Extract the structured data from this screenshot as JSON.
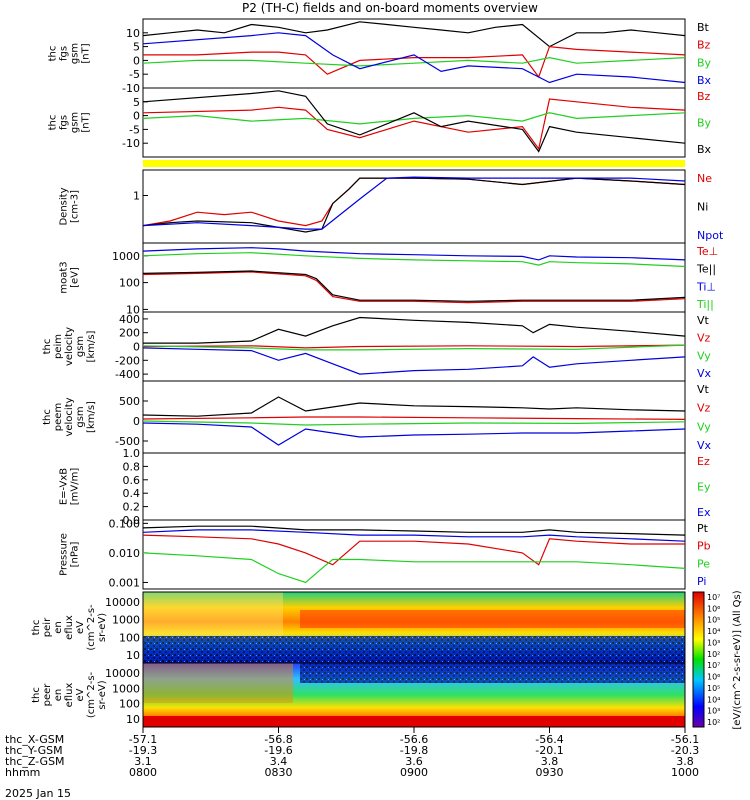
{
  "title": "P2 (TH-C) fields and on-board moments overview",
  "colors": {
    "black": "#000000",
    "red": "#e00000",
    "green": "#20d020",
    "blue": "#0000e0",
    "yellow": "#ffff00"
  },
  "chart_data": [
    {
      "type": "line",
      "id": "fgs_gsm",
      "ylabel": [
        "thc",
        "fgs",
        "gsm",
        "[nT]"
      ],
      "ylim": [
        -10,
        15
      ],
      "yticks": [
        "10",
        "5",
        "0",
        "-5",
        "-10"
      ],
      "series": [
        {
          "name": "Bt",
          "color": "#000000",
          "x": [
            0,
            0.05,
            0.1,
            0.15,
            0.2,
            0.25,
            0.3,
            0.34,
            0.4,
            0.45,
            0.5,
            0.55,
            0.6,
            0.65,
            0.7,
            0.75,
            0.8,
            0.85,
            0.9,
            0.95,
            1.0
          ],
          "values": [
            9,
            10,
            11,
            10,
            13,
            12,
            10,
            11,
            14,
            13,
            12,
            11,
            10,
            12,
            13,
            5,
            10,
            10,
            11,
            10,
            9
          ]
        },
        {
          "name": "Bz",
          "color": "#e00000",
          "x": [
            0,
            0.1,
            0.2,
            0.25,
            0.3,
            0.34,
            0.4,
            0.5,
            0.6,
            0.7,
            0.73,
            0.75,
            0.8,
            0.9,
            1.0
          ],
          "values": [
            2,
            2,
            3,
            3,
            2,
            -5,
            0,
            1,
            1,
            2,
            -6,
            5,
            4,
            3,
            2
          ]
        },
        {
          "name": "By",
          "color": "#20d020",
          "x": [
            0,
            0.1,
            0.2,
            0.3,
            0.4,
            0.5,
            0.6,
            0.7,
            0.75,
            0.8,
            0.9,
            1.0
          ],
          "values": [
            -1,
            0,
            0,
            -1,
            -2,
            -1,
            0,
            -1,
            1,
            -1,
            0,
            1
          ]
        },
        {
          "name": "Bx",
          "color": "#0000e0",
          "x": [
            0,
            0.2,
            0.25,
            0.3,
            0.35,
            0.4,
            0.5,
            0.55,
            0.6,
            0.7,
            0.75,
            0.8,
            0.9,
            1.0
          ],
          "values": [
            6,
            9,
            10,
            9,
            2,
            -3,
            2,
            -4,
            -2,
            -3,
            -8,
            -5,
            -6,
            -8
          ]
        }
      ]
    },
    {
      "type": "line",
      "id": "fgs_gsm_2",
      "ylabel": [
        "thc",
        "fgs",
        "gsm",
        "[nT]"
      ],
      "ylim": [
        -15,
        10
      ],
      "yticks": [
        "5",
        "0",
        "-5",
        "-10"
      ],
      "series": [
        {
          "name": "Bz",
          "color": "#e00000",
          "x": [
            0,
            0.2,
            0.25,
            0.3,
            0.34,
            0.4,
            0.5,
            0.6,
            0.7,
            0.73,
            0.75,
            0.8,
            0.9,
            1.0
          ],
          "values": [
            1,
            2,
            3,
            2,
            -5,
            -8,
            -2,
            -6,
            -4,
            -12,
            6,
            5,
            3,
            2
          ]
        },
        {
          "name": "By",
          "color": "#20d020",
          "x": [
            0,
            0.1,
            0.2,
            0.3,
            0.4,
            0.5,
            0.6,
            0.7,
            0.75,
            0.8,
            0.9,
            1.0
          ],
          "values": [
            -1,
            0,
            -2,
            -1,
            -3,
            -1,
            0,
            -2,
            1,
            -1,
            0,
            1
          ]
        },
        {
          "name": "Bx",
          "color": "#000000",
          "x": [
            0,
            0.2,
            0.25,
            0.3,
            0.34,
            0.4,
            0.5,
            0.55,
            0.6,
            0.7,
            0.73,
            0.75,
            0.8,
            0.9,
            1.0
          ],
          "values": [
            5,
            8,
            9,
            7,
            -3,
            -7,
            1,
            -4,
            -2,
            -5,
            -13,
            -4,
            -6,
            -8,
            -10
          ]
        }
      ]
    },
    {
      "type": "line",
      "id": "density",
      "log": true,
      "ylabel": [
        "Density",
        "[cm-3]"
      ],
      "ylim": [
        0.05,
        5
      ],
      "yticks": [
        "1"
      ],
      "series": [
        {
          "name": "Ne",
          "color": "#e00000",
          "x": [
            0,
            0.05,
            0.1,
            0.15,
            0.2,
            0.25,
            0.3,
            0.33,
            0.35,
            0.38,
            0.4,
            0.5,
            0.6,
            0.7,
            0.8,
            0.9,
            1.0
          ],
          "values": [
            0.15,
            0.2,
            0.35,
            0.3,
            0.35,
            0.2,
            0.15,
            0.2,
            0.6,
            1.5,
            3,
            3,
            2.8,
            2,
            3,
            2.5,
            2
          ]
        },
        {
          "name": "Ni",
          "color": "#000000",
          "x": [
            0,
            0.05,
            0.1,
            0.2,
            0.3,
            0.33,
            0.35,
            0.38,
            0.4,
            0.5,
            0.6,
            0.7,
            0.8,
            0.9,
            1.0
          ],
          "values": [
            0.15,
            0.18,
            0.2,
            0.18,
            0.1,
            0.12,
            0.6,
            1.5,
            3,
            3,
            2.8,
            2,
            3,
            2.5,
            2
          ]
        },
        {
          "name": "Npot",
          "color": "#0000e0",
          "x": [
            0,
            0.1,
            0.2,
            0.3,
            0.33,
            0.4,
            0.45,
            0.5,
            0.6,
            0.7,
            0.8,
            0.9,
            1.0
          ],
          "values": [
            0.15,
            0.18,
            0.15,
            0.12,
            0.12,
            0.8,
            3,
            3.2,
            3,
            3,
            3,
            3,
            2.5
          ]
        }
      ]
    },
    {
      "type": "line",
      "id": "temperature",
      "log": true,
      "ylabel": [
        "moat3",
        "[eV]"
      ],
      "ylim": [
        8,
        3000
      ],
      "yticks": [
        "1000",
        "100",
        "10"
      ],
      "series": [
        {
          "name": "Te⊥",
          "color": "#e00000",
          "x": [
            0,
            0.1,
            0.2,
            0.3,
            0.32,
            0.35,
            0.4,
            0.5,
            0.6,
            0.7,
            0.8,
            0.9,
            1.0
          ],
          "values": [
            200,
            220,
            250,
            180,
            120,
            30,
            20,
            20,
            18,
            20,
            20,
            20,
            25
          ]
        },
        {
          "name": "Te||",
          "color": "#000000",
          "x": [
            0,
            0.1,
            0.2,
            0.3,
            0.32,
            0.35,
            0.4,
            0.5,
            0.6,
            0.7,
            0.8,
            0.9,
            1.0
          ],
          "values": [
            220,
            240,
            270,
            200,
            140,
            35,
            22,
            22,
            20,
            22,
            22,
            22,
            28
          ]
        },
        {
          "name": "Ti⊥",
          "color": "#0000e0",
          "x": [
            0,
            0.1,
            0.2,
            0.25,
            0.3,
            0.4,
            0.5,
            0.6,
            0.7,
            0.73,
            0.75,
            0.8,
            0.9,
            1.0
          ],
          "values": [
            1500,
            1800,
            2000,
            1800,
            1500,
            1200,
            1100,
            1000,
            950,
            700,
            1000,
            900,
            850,
            700
          ]
        },
        {
          "name": "Ti||",
          "color": "#20d020",
          "x": [
            0,
            0.1,
            0.2,
            0.3,
            0.4,
            0.5,
            0.6,
            0.7,
            0.73,
            0.75,
            0.8,
            0.9,
            1.0
          ],
          "values": [
            1000,
            1200,
            1300,
            1000,
            800,
            700,
            650,
            600,
            450,
            600,
            550,
            500,
            400
          ]
        }
      ]
    },
    {
      "type": "line",
      "id": "peim_velocity",
      "ylabel": [
        "thc",
        "peim",
        "velocity",
        "gsm",
        "[km/s]"
      ],
      "ylim": [
        -500,
        500
      ],
      "yticks": [
        "400",
        "200",
        "0",
        "-200",
        "-400"
      ],
      "series": [
        {
          "name": "Vt",
          "color": "#000000",
          "x": [
            0,
            0.1,
            0.2,
            0.25,
            0.3,
            0.35,
            0.4,
            0.5,
            0.6,
            0.7,
            0.72,
            0.75,
            0.8,
            0.9,
            1.0
          ],
          "values": [
            50,
            50,
            80,
            250,
            150,
            300,
            420,
            380,
            350,
            300,
            200,
            320,
            280,
            220,
            150
          ]
        },
        {
          "name": "Vz",
          "color": "#e00000",
          "x": [
            0,
            0.2,
            0.3,
            0.4,
            0.6,
            0.8,
            1.0
          ],
          "values": [
            0,
            10,
            -20,
            0,
            10,
            0,
            20
          ]
        },
        {
          "name": "Vy",
          "color": "#20d020",
          "x": [
            0,
            0.2,
            0.3,
            0.4,
            0.6,
            0.8,
            1.0
          ],
          "values": [
            10,
            -20,
            -50,
            -50,
            -30,
            -40,
            20
          ]
        },
        {
          "name": "Vx",
          "color": "#0000e0",
          "x": [
            0,
            0.1,
            0.2,
            0.25,
            0.3,
            0.35,
            0.4,
            0.5,
            0.6,
            0.7,
            0.72,
            0.75,
            0.8,
            0.9,
            1.0
          ],
          "values": [
            -20,
            -40,
            -60,
            -200,
            -100,
            -250,
            -400,
            -350,
            -330,
            -280,
            -150,
            -300,
            -250,
            -200,
            -150
          ]
        }
      ]
    },
    {
      "type": "line",
      "id": "peem_velocity",
      "ylabel": [
        "thc",
        "peem",
        "velocity",
        "gsm",
        "[km/s]"
      ],
      "ylim": [
        -800,
        1000
      ],
      "yticks": [
        "500",
        "0",
        "-500"
      ],
      "series": [
        {
          "name": "Vt",
          "color": "#000000",
          "x": [
            0,
            0.1,
            0.2,
            0.25,
            0.3,
            0.35,
            0.4,
            0.5,
            0.6,
            0.7,
            0.75,
            0.8,
            0.9,
            1.0
          ],
          "values": [
            150,
            120,
            200,
            600,
            250,
            350,
            450,
            380,
            360,
            330,
            300,
            330,
            280,
            250
          ]
        },
        {
          "name": "Vz",
          "color": "#e00000",
          "x": [
            0,
            0.2,
            0.3,
            0.4,
            0.6,
            0.8,
            1.0
          ],
          "values": [
            50,
            80,
            100,
            100,
            80,
            60,
            40
          ]
        },
        {
          "name": "Vy",
          "color": "#20d020",
          "x": [
            0,
            0.2,
            0.3,
            0.4,
            0.6,
            0.8,
            1.0
          ],
          "values": [
            0,
            -50,
            -100,
            -80,
            -50,
            -60,
            -20
          ]
        },
        {
          "name": "Vx",
          "color": "#0000e0",
          "x": [
            0,
            0.1,
            0.2,
            0.25,
            0.3,
            0.35,
            0.4,
            0.5,
            0.6,
            0.7,
            0.8,
            0.9,
            1.0
          ],
          "values": [
            -50,
            -80,
            -150,
            -600,
            -200,
            -300,
            -400,
            -350,
            -330,
            -300,
            -300,
            -250,
            -200
          ]
        }
      ]
    },
    {
      "type": "line",
      "id": "efield",
      "ylabel": [
        "E=-VxB",
        "[mV/m]"
      ],
      "ylim": [
        0,
        1
      ],
      "yticks": [
        "1.0",
        "0.8",
        "0.6",
        "0.4",
        "0.2",
        "0.0"
      ],
      "series": [
        {
          "name": "Ez",
          "color": "#e00000",
          "x": [],
          "values": []
        },
        {
          "name": "Ey",
          "color": "#20d020",
          "x": [],
          "values": []
        },
        {
          "name": "Ex",
          "color": "#0000e0",
          "x": [],
          "values": []
        }
      ]
    },
    {
      "type": "line",
      "id": "pressure",
      "log": true,
      "ylabel": [
        "Pressure",
        "[nPa]"
      ],
      "ylim": [
        0.0006,
        0.13
      ],
      "yticks": [
        "0.100",
        "0.010",
        "0.001"
      ],
      "series": [
        {
          "name": "Pt",
          "color": "#000000",
          "x": [
            0,
            0.1,
            0.2,
            0.3,
            0.4,
            0.5,
            0.6,
            0.7,
            0.75,
            0.8,
            0.9,
            1.0
          ],
          "values": [
            0.07,
            0.08,
            0.08,
            0.06,
            0.06,
            0.055,
            0.05,
            0.05,
            0.06,
            0.05,
            0.045,
            0.04
          ]
        },
        {
          "name": "Pb",
          "color": "#e00000",
          "x": [
            0,
            0.1,
            0.2,
            0.25,
            0.3,
            0.35,
            0.4,
            0.5,
            0.6,
            0.7,
            0.73,
            0.75,
            0.8,
            0.9,
            1.0
          ],
          "values": [
            0.04,
            0.035,
            0.03,
            0.02,
            0.01,
            0.004,
            0.025,
            0.025,
            0.02,
            0.01,
            0.004,
            0.03,
            0.025,
            0.02,
            0.02
          ]
        },
        {
          "name": "Pe",
          "color": "#20d020",
          "x": [
            0,
            0.1,
            0.2,
            0.25,
            0.3,
            0.33,
            0.35,
            0.4,
            0.5,
            0.6,
            0.7,
            0.8,
            0.9,
            1.0
          ],
          "values": [
            0.01,
            0.008,
            0.006,
            0.002,
            0.001,
            0.003,
            0.006,
            0.006,
            0.005,
            0.005,
            0.005,
            0.005,
            0.004,
            0.003
          ]
        },
        {
          "name": "Pi",
          "color": "#0000e0",
          "x": [
            0,
            0.1,
            0.2,
            0.3,
            0.4,
            0.5,
            0.6,
            0.7,
            0.75,
            0.8,
            0.9,
            1.0
          ],
          "values": [
            0.05,
            0.06,
            0.06,
            0.05,
            0.04,
            0.04,
            0.035,
            0.035,
            0.04,
            0.035,
            0.03,
            0.025
          ]
        }
      ]
    },
    {
      "type": "heatmap",
      "id": "peir_en_eflux",
      "ylabel": [
        "thc",
        "peir",
        "en",
        "eflux",
        "eV",
        "(cm^2-s-",
        "sr-eV)"
      ],
      "yticks": [
        "10000",
        "1000",
        "100",
        "10"
      ]
    },
    {
      "type": "heatmap",
      "id": "peer_en_eflux",
      "ylabel": [
        "thc",
        "peer",
        "en",
        "eflux",
        "eV",
        "(cm^2-s-",
        "sr-eV)"
      ],
      "yticks": [
        "10000",
        "1000",
        "100",
        "10"
      ]
    }
  ],
  "colorbar": {
    "label": "[eV/(cm^2-s-sr-eV)] (All Qs)",
    "ticks": [
      "10⁷",
      "10⁶",
      "10⁵",
      "10⁴",
      "10³",
      "10²",
      "10⁷",
      "10⁶",
      "10⁵",
      "10⁴",
      "10³",
      "10²"
    ]
  },
  "xaxis": {
    "rows": [
      {
        "label": "thc_X-GSM",
        "values": [
          "-57.1",
          "-56.8",
          "-56.6",
          "-56.4",
          "-56.1"
        ]
      },
      {
        "label": "thc_Y-GSM",
        "values": [
          "-19.3",
          "-19.6",
          "-19.8",
          "-20.1",
          "-20.3"
        ]
      },
      {
        "label": "thc_Z-GSM",
        "values": [
          "3.1",
          "3.4",
          "3.6",
          "3.8",
          "3.8"
        ]
      },
      {
        "label": "hhmm",
        "values": [
          "0800",
          "0830",
          "0900",
          "0930",
          "1000"
        ]
      }
    ],
    "date": "2025 Jan 15"
  }
}
